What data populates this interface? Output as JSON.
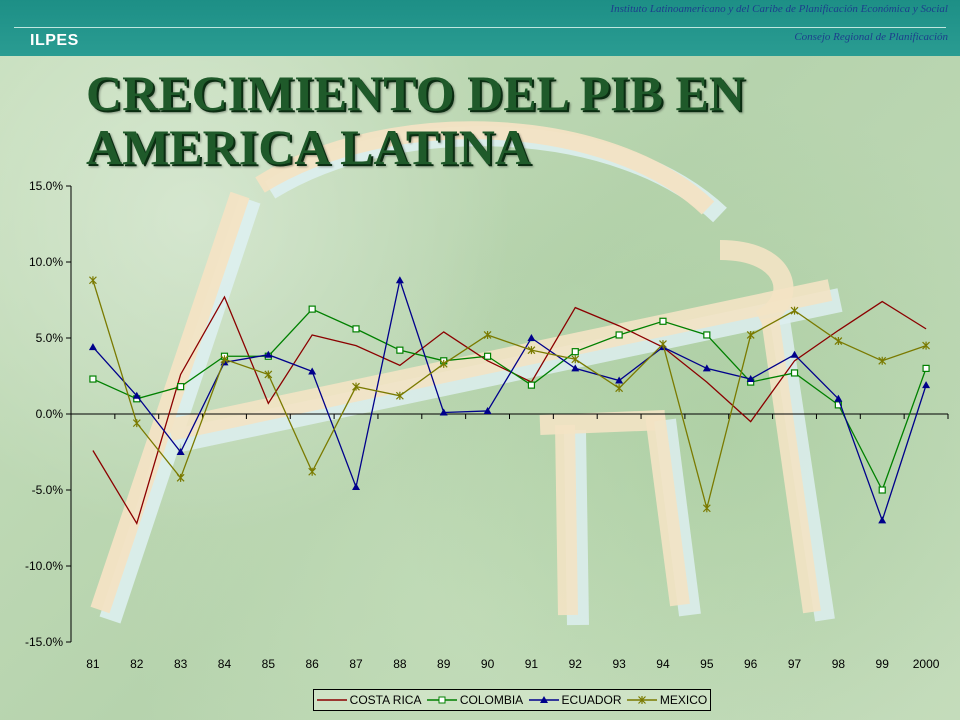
{
  "header": {
    "organization": "Instituto Latinoamericano y del Caribe de Planificación Económica y Social",
    "council": "Consejo Regional de Planificación",
    "logo": "ILPES"
  },
  "title": {
    "line1": "CRECIMIENTO DEL PIB EN",
    "line2": "AMERICA LATINA"
  },
  "chart_data": {
    "type": "line",
    "categories": [
      "81",
      "82",
      "83",
      "84",
      "85",
      "86",
      "87",
      "88",
      "89",
      "90",
      "91",
      "92",
      "93",
      "94",
      "95",
      "96",
      "97",
      "98",
      "99",
      "2000"
    ],
    "ylim": [
      -15,
      15
    ],
    "yticks": [
      15,
      10,
      5,
      0,
      -5,
      -10,
      -15
    ],
    "ytick_labels": [
      "15.0%",
      "10.0%",
      "5.0%",
      "0.0%",
      "-5.0%",
      "-10.0%",
      "-15.0%"
    ],
    "grid": false,
    "legend_position": "bottom",
    "series": [
      {
        "name": "COSTA RICA",
        "color": "#8b0000",
        "marker": "none",
        "values": [
          -2.4,
          -7.2,
          2.6,
          7.7,
          0.7,
          5.2,
          4.5,
          3.2,
          5.4,
          3.5,
          2.1,
          7.0,
          5.8,
          4.4,
          2.1,
          -0.5,
          3.5,
          5.5,
          7.4,
          5.6
        ]
      },
      {
        "name": "COLOMBIA",
        "color": "#008000",
        "marker": "square",
        "values": [
          2.3,
          1.0,
          1.8,
          3.8,
          3.8,
          6.9,
          5.6,
          4.2,
          3.5,
          3.8,
          1.9,
          4.1,
          5.2,
          6.1,
          5.2,
          2.1,
          2.7,
          0.6,
          -5.0,
          3.0
        ]
      },
      {
        "name": "ECUADOR",
        "color": "#00008b",
        "marker": "triangle",
        "values": [
          4.4,
          1.2,
          -2.5,
          3.4,
          3.9,
          2.8,
          -4.8,
          8.8,
          0.1,
          0.2,
          5.0,
          3.0,
          2.2,
          4.4,
          3.0,
          2.3,
          3.9,
          1.0,
          -7.0,
          1.9
        ]
      },
      {
        "name": "MEXICO",
        "color": "#7a7a00",
        "marker": "star",
        "values": [
          8.8,
          -0.6,
          -4.2,
          3.6,
          2.6,
          -3.8,
          1.8,
          1.2,
          3.3,
          5.2,
          4.2,
          3.6,
          1.7,
          4.6,
          -6.2,
          5.2,
          6.8,
          4.8,
          3.5,
          4.5
        ]
      }
    ]
  }
}
